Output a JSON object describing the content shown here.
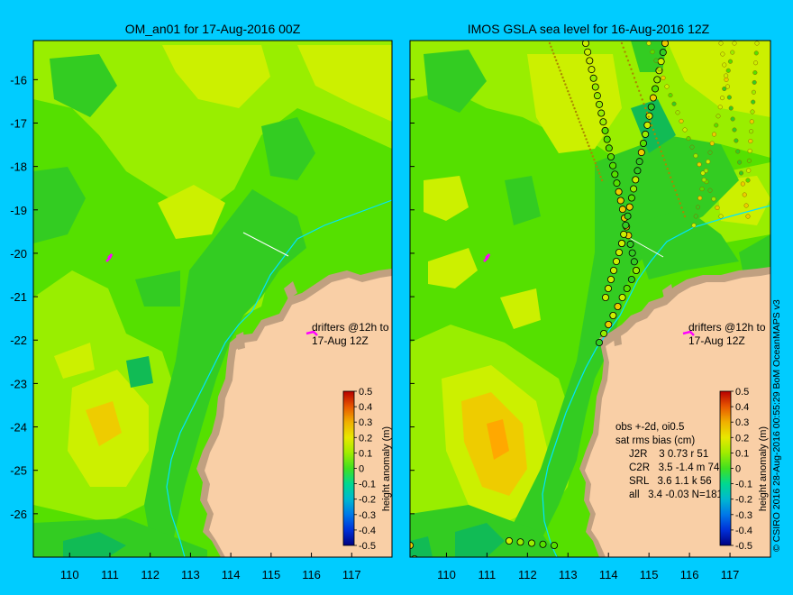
{
  "panels": [
    {
      "id": "left",
      "title": "OM_an01 for 17-Aug-2016 00Z",
      "drifter_label_line1": "drifters @12h to",
      "drifter_label_line2": "17-Aug 12Z"
    },
    {
      "id": "right",
      "title": "IMOS GSLA sea level  for 16-Aug-2016 12Z",
      "drifter_label_line1": "drifters @12h to",
      "drifter_label_line2": "17-Aug 12Z",
      "stats": [
        "obs +-2d, oi0.5",
        "sat rms bias (cm)",
        "J2R    3 0.73 r 51",
        "C2R   3.5 -1.4 m 74",
        "SRL   3.6 1.1 k 56",
        "all   3.4 -0.03 N=181"
      ]
    }
  ],
  "axes": {
    "lon_ticks": [
      "110",
      "111",
      "112",
      "113",
      "114",
      "115",
      "116",
      "117"
    ],
    "lat_ticks": [
      "-16",
      "-17",
      "-18",
      "-19",
      "-20",
      "-21",
      "-22",
      "-23",
      "-24",
      "-25",
      "-26"
    ],
    "lon_range": [
      109.1,
      118.0
    ],
    "lat_range": [
      -27.0,
      -15.1
    ]
  },
  "colorbar": {
    "label": "height anomaly (m)",
    "ticks": [
      "0.5",
      "0.4",
      "0.3",
      "0.2",
      "0.1",
      "0",
      "-0.1",
      "-0.2",
      "-0.3",
      "-0.4",
      "-0.5"
    ],
    "range": [
      -0.5,
      0.5
    ],
    "colors": [
      "#000080",
      "#0018c8",
      "#0060e0",
      "#00a8d8",
      "#00d0a0",
      "#50e000",
      "#a8ec00",
      "#e8e800",
      "#f0b000",
      "#e86000",
      "#c01000"
    ]
  },
  "map_colors": {
    "land": "#f9cfa6",
    "coast": "#c0a080",
    "dark_green": "#33cc22",
    "green": "#55e000",
    "light_green": "#99ee00",
    "yellow": "#ccf000",
    "deep": "#11bb55",
    "orange": "#eecc00",
    "bathy_line": "#00e5ff"
  },
  "credit": "© CSIRO 2016   28-Aug-2016 00:55:29 BoM OceanMAPS v3"
}
